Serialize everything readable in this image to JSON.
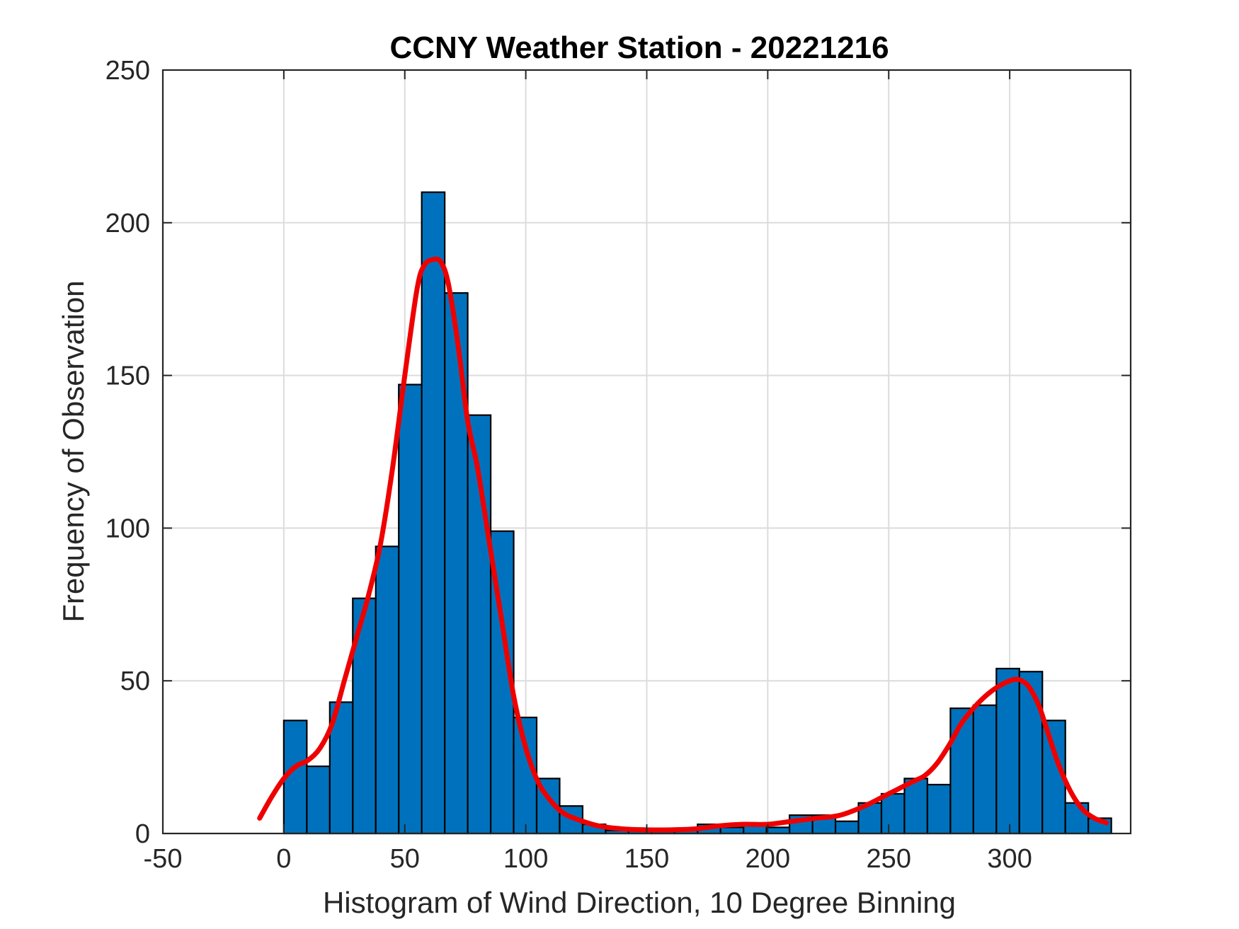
{
  "chart_data": {
    "type": "bar",
    "title": "CCNY Weather Station - 20221216",
    "xlabel": "Histogram of Wind Direction, 10 Degree Binning",
    "ylabel": "Frequency of Observation",
    "xlim": [
      -50,
      350
    ],
    "ylim": [
      0,
      250
    ],
    "xticks": [
      -50,
      0,
      50,
      100,
      150,
      200,
      250,
      300
    ],
    "yticks": [
      0,
      50,
      100,
      150,
      200,
      250
    ],
    "grid": true,
    "bin_width": 9.5,
    "bins": [
      {
        "left": 0,
        "value": 37
      },
      {
        "left": 9.5,
        "value": 22
      },
      {
        "left": 19,
        "value": 43
      },
      {
        "left": 28.5,
        "value": 77
      },
      {
        "left": 38,
        "value": 94
      },
      {
        "left": 47.5,
        "value": 147
      },
      {
        "left": 57,
        "value": 210
      },
      {
        "left": 66.5,
        "value": 177
      },
      {
        "left": 76,
        "value": 137
      },
      {
        "left": 85.5,
        "value": 99
      },
      {
        "left": 95,
        "value": 38
      },
      {
        "left": 104.5,
        "value": 18
      },
      {
        "left": 114,
        "value": 9
      },
      {
        "left": 123.5,
        "value": 3
      },
      {
        "left": 133,
        "value": 1
      },
      {
        "left": 142.5,
        "value": 1
      },
      {
        "left": 152,
        "value": 1
      },
      {
        "left": 161.5,
        "value": 1
      },
      {
        "left": 171,
        "value": 3
      },
      {
        "left": 180.5,
        "value": 2
      },
      {
        "left": 190,
        "value": 3
      },
      {
        "left": 199.5,
        "value": 2
      },
      {
        "left": 209,
        "value": 6
      },
      {
        "left": 218.5,
        "value": 6
      },
      {
        "left": 228,
        "value": 4
      },
      {
        "left": 237.5,
        "value": 10
      },
      {
        "left": 247,
        "value": 13
      },
      {
        "left": 256.5,
        "value": 18
      },
      {
        "left": 266,
        "value": 16
      },
      {
        "left": 275.5,
        "value": 41
      },
      {
        "left": 285,
        "value": 42
      },
      {
        "left": 294.5,
        "value": 54
      },
      {
        "left": 304,
        "value": 53
      },
      {
        "left": 313.5,
        "value": 37
      },
      {
        "left": 323,
        "value": 10
      },
      {
        "left": 332.5,
        "value": 5
      }
    ],
    "fit_curve": {
      "x": [
        -10,
        -5,
        0,
        5,
        10,
        15,
        20,
        25,
        30,
        35,
        40,
        45,
        50,
        55,
        58,
        62,
        65,
        68,
        72,
        76,
        80,
        85,
        90,
        95,
        100,
        105,
        110,
        115,
        120,
        130,
        140,
        150,
        160,
        170,
        180,
        190,
        200,
        210,
        220,
        230,
        240,
        250,
        260,
        265,
        270,
        275,
        280,
        285,
        290,
        295,
        300,
        303,
        305,
        308,
        312,
        315,
        320,
        325,
        330,
        335,
        340
      ],
      "y": [
        5,
        12,
        18,
        22,
        24,
        28,
        36,
        50,
        64,
        78,
        95,
        120,
        150,
        178,
        186,
        188,
        187,
        180,
        160,
        135,
        120,
        95,
        70,
        45,
        28,
        17,
        11,
        7,
        5,
        2.5,
        1.5,
        1.2,
        1.2,
        1.5,
        2.5,
        3,
        3,
        4,
        5,
        6,
        9,
        13,
        17,
        19,
        23,
        29,
        36,
        41,
        45,
        48,
        50,
        50.5,
        50,
        48,
        42,
        35,
        23,
        14,
        8,
        5,
        3.5
      ]
    },
    "colors": {
      "bar_fill": "#0072BD",
      "bar_edge": "#000000",
      "fit_line": "#EE0000",
      "grid": "#DCDCDC",
      "axis": "#262626"
    }
  }
}
